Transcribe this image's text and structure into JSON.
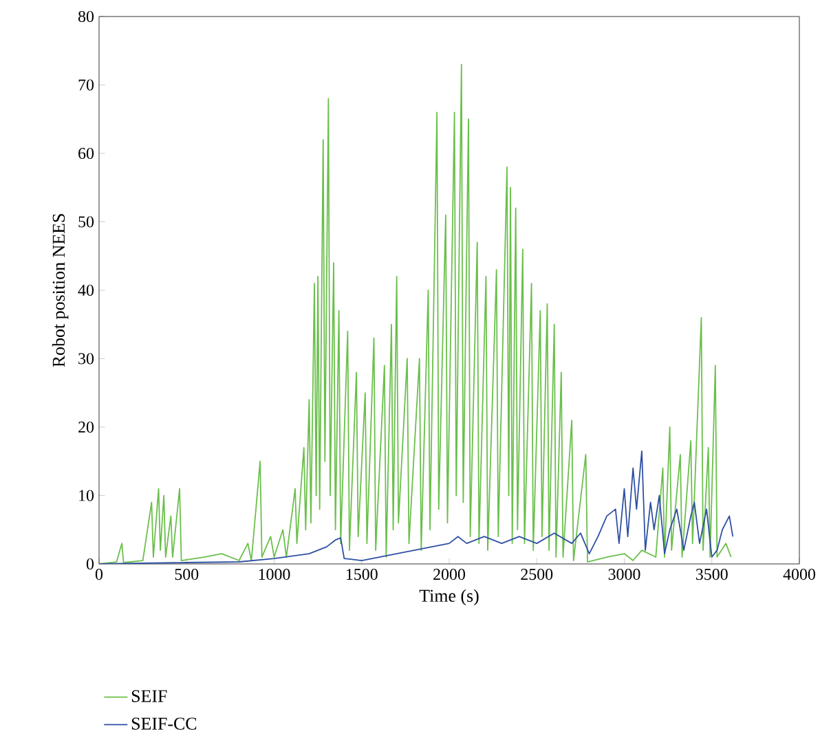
{
  "chart_data": {
    "type": "line",
    "xlabel": "Time (s)",
    "ylabel": "Robot position NEES",
    "xlim": [
      0,
      4000
    ],
    "ylim": [
      0,
      80
    ],
    "xticks": [
      0,
      500,
      1000,
      1500,
      2000,
      2500,
      3000,
      3500,
      4000
    ],
    "yticks": [
      0,
      10,
      20,
      30,
      40,
      50,
      60,
      70,
      80
    ],
    "legend": "bottom",
    "grid": false,
    "marker": "none",
    "line_style": "solid",
    "series": [
      {
        "name": "SEIF",
        "color": "#6abf4b",
        "x": [
          0,
          100,
          130,
          140,
          250,
          300,
          310,
          340,
          350,
          370,
          380,
          410,
          420,
          460,
          470,
          600,
          700,
          800,
          850,
          870,
          920,
          930,
          980,
          1000,
          1050,
          1070,
          1120,
          1130,
          1170,
          1180,
          1200,
          1210,
          1230,
          1240,
          1250,
          1260,
          1280,
          1290,
          1310,
          1320,
          1340,
          1350,
          1370,
          1380,
          1420,
          1430,
          1470,
          1480,
          1520,
          1530,
          1570,
          1580,
          1630,
          1640,
          1670,
          1680,
          1700,
          1710,
          1760,
          1770,
          1830,
          1840,
          1880,
          1890,
          1930,
          1940,
          1980,
          1990,
          2030,
          2040,
          2070,
          2080,
          2110,
          2120,
          2160,
          2170,
          2210,
          2220,
          2270,
          2280,
          2330,
          2340,
          2350,
          2360,
          2380,
          2390,
          2420,
          2430,
          2470,
          2480,
          2520,
          2530,
          2560,
          2570,
          2600,
          2610,
          2640,
          2650,
          2700,
          2710,
          2780,
          2790,
          2900,
          3000,
          3050,
          3100,
          3180,
          3220,
          3230,
          3260,
          3270,
          3320,
          3330,
          3380,
          3390,
          3440,
          3450,
          3480,
          3490,
          3520,
          3530,
          3580,
          3610
        ],
        "values": [
          0,
          0.3,
          3,
          0.2,
          0.5,
          9,
          1,
          11,
          2,
          10,
          1,
          7,
          1,
          11,
          0.5,
          1,
          1.5,
          0.5,
          3,
          0.5,
          15,
          1,
          4,
          1,
          5,
          1,
          11,
          3,
          17,
          5,
          24,
          6,
          41,
          10,
          42,
          8,
          62,
          15,
          68,
          10,
          44,
          5,
          37,
          3,
          34,
          2,
          28,
          4,
          25,
          3,
          33,
          2,
          29,
          1,
          35,
          5,
          42,
          6,
          30,
          3,
          30,
          2,
          40,
          5,
          66,
          8,
          51,
          6,
          66,
          10,
          73,
          9,
          65,
          4,
          47,
          3,
          42,
          2,
          43,
          4,
          58,
          10,
          55,
          3,
          52,
          5,
          46,
          3,
          41,
          2,
          37,
          4,
          38,
          2,
          35,
          1,
          28,
          1,
          21,
          0.5,
          16,
          0.3,
          1,
          1.5,
          0.5,
          2,
          1,
          14,
          1,
          20,
          2,
          16,
          1,
          18,
          3,
          36,
          2,
          17,
          1,
          29,
          1,
          3,
          1
        ]
      },
      {
        "name": "SEIF-CC",
        "color": "#2e4fa3",
        "x": [
          0,
          500,
          800,
          1000,
          1200,
          1300,
          1350,
          1380,
          1400,
          1500,
          1600,
          1700,
          1800,
          1900,
          2000,
          2050,
          2100,
          2200,
          2300,
          2400,
          2500,
          2600,
          2700,
          2750,
          2800,
          2850,
          2900,
          2950,
          2970,
          3000,
          3020,
          3050,
          3070,
          3100,
          3120,
          3150,
          3170,
          3200,
          3230,
          3260,
          3300,
          3340,
          3380,
          3400,
          3430,
          3470,
          3500,
          3530,
          3560,
          3600,
          3620
        ],
        "values": [
          0,
          0.2,
          0.3,
          0.8,
          1.5,
          2.5,
          3.5,
          3.8,
          0.8,
          0.5,
          1,
          1.5,
          2,
          2.5,
          3,
          4,
          3,
          4,
          3,
          4,
          3,
          4.5,
          3,
          4.5,
          1.5,
          4,
          7,
          8,
          3,
          11,
          4,
          14,
          8,
          16.5,
          2,
          9,
          5,
          10,
          1.5,
          5,
          8,
          2,
          7,
          9,
          3,
          8,
          1,
          2,
          5,
          7,
          4
        ]
      }
    ]
  }
}
